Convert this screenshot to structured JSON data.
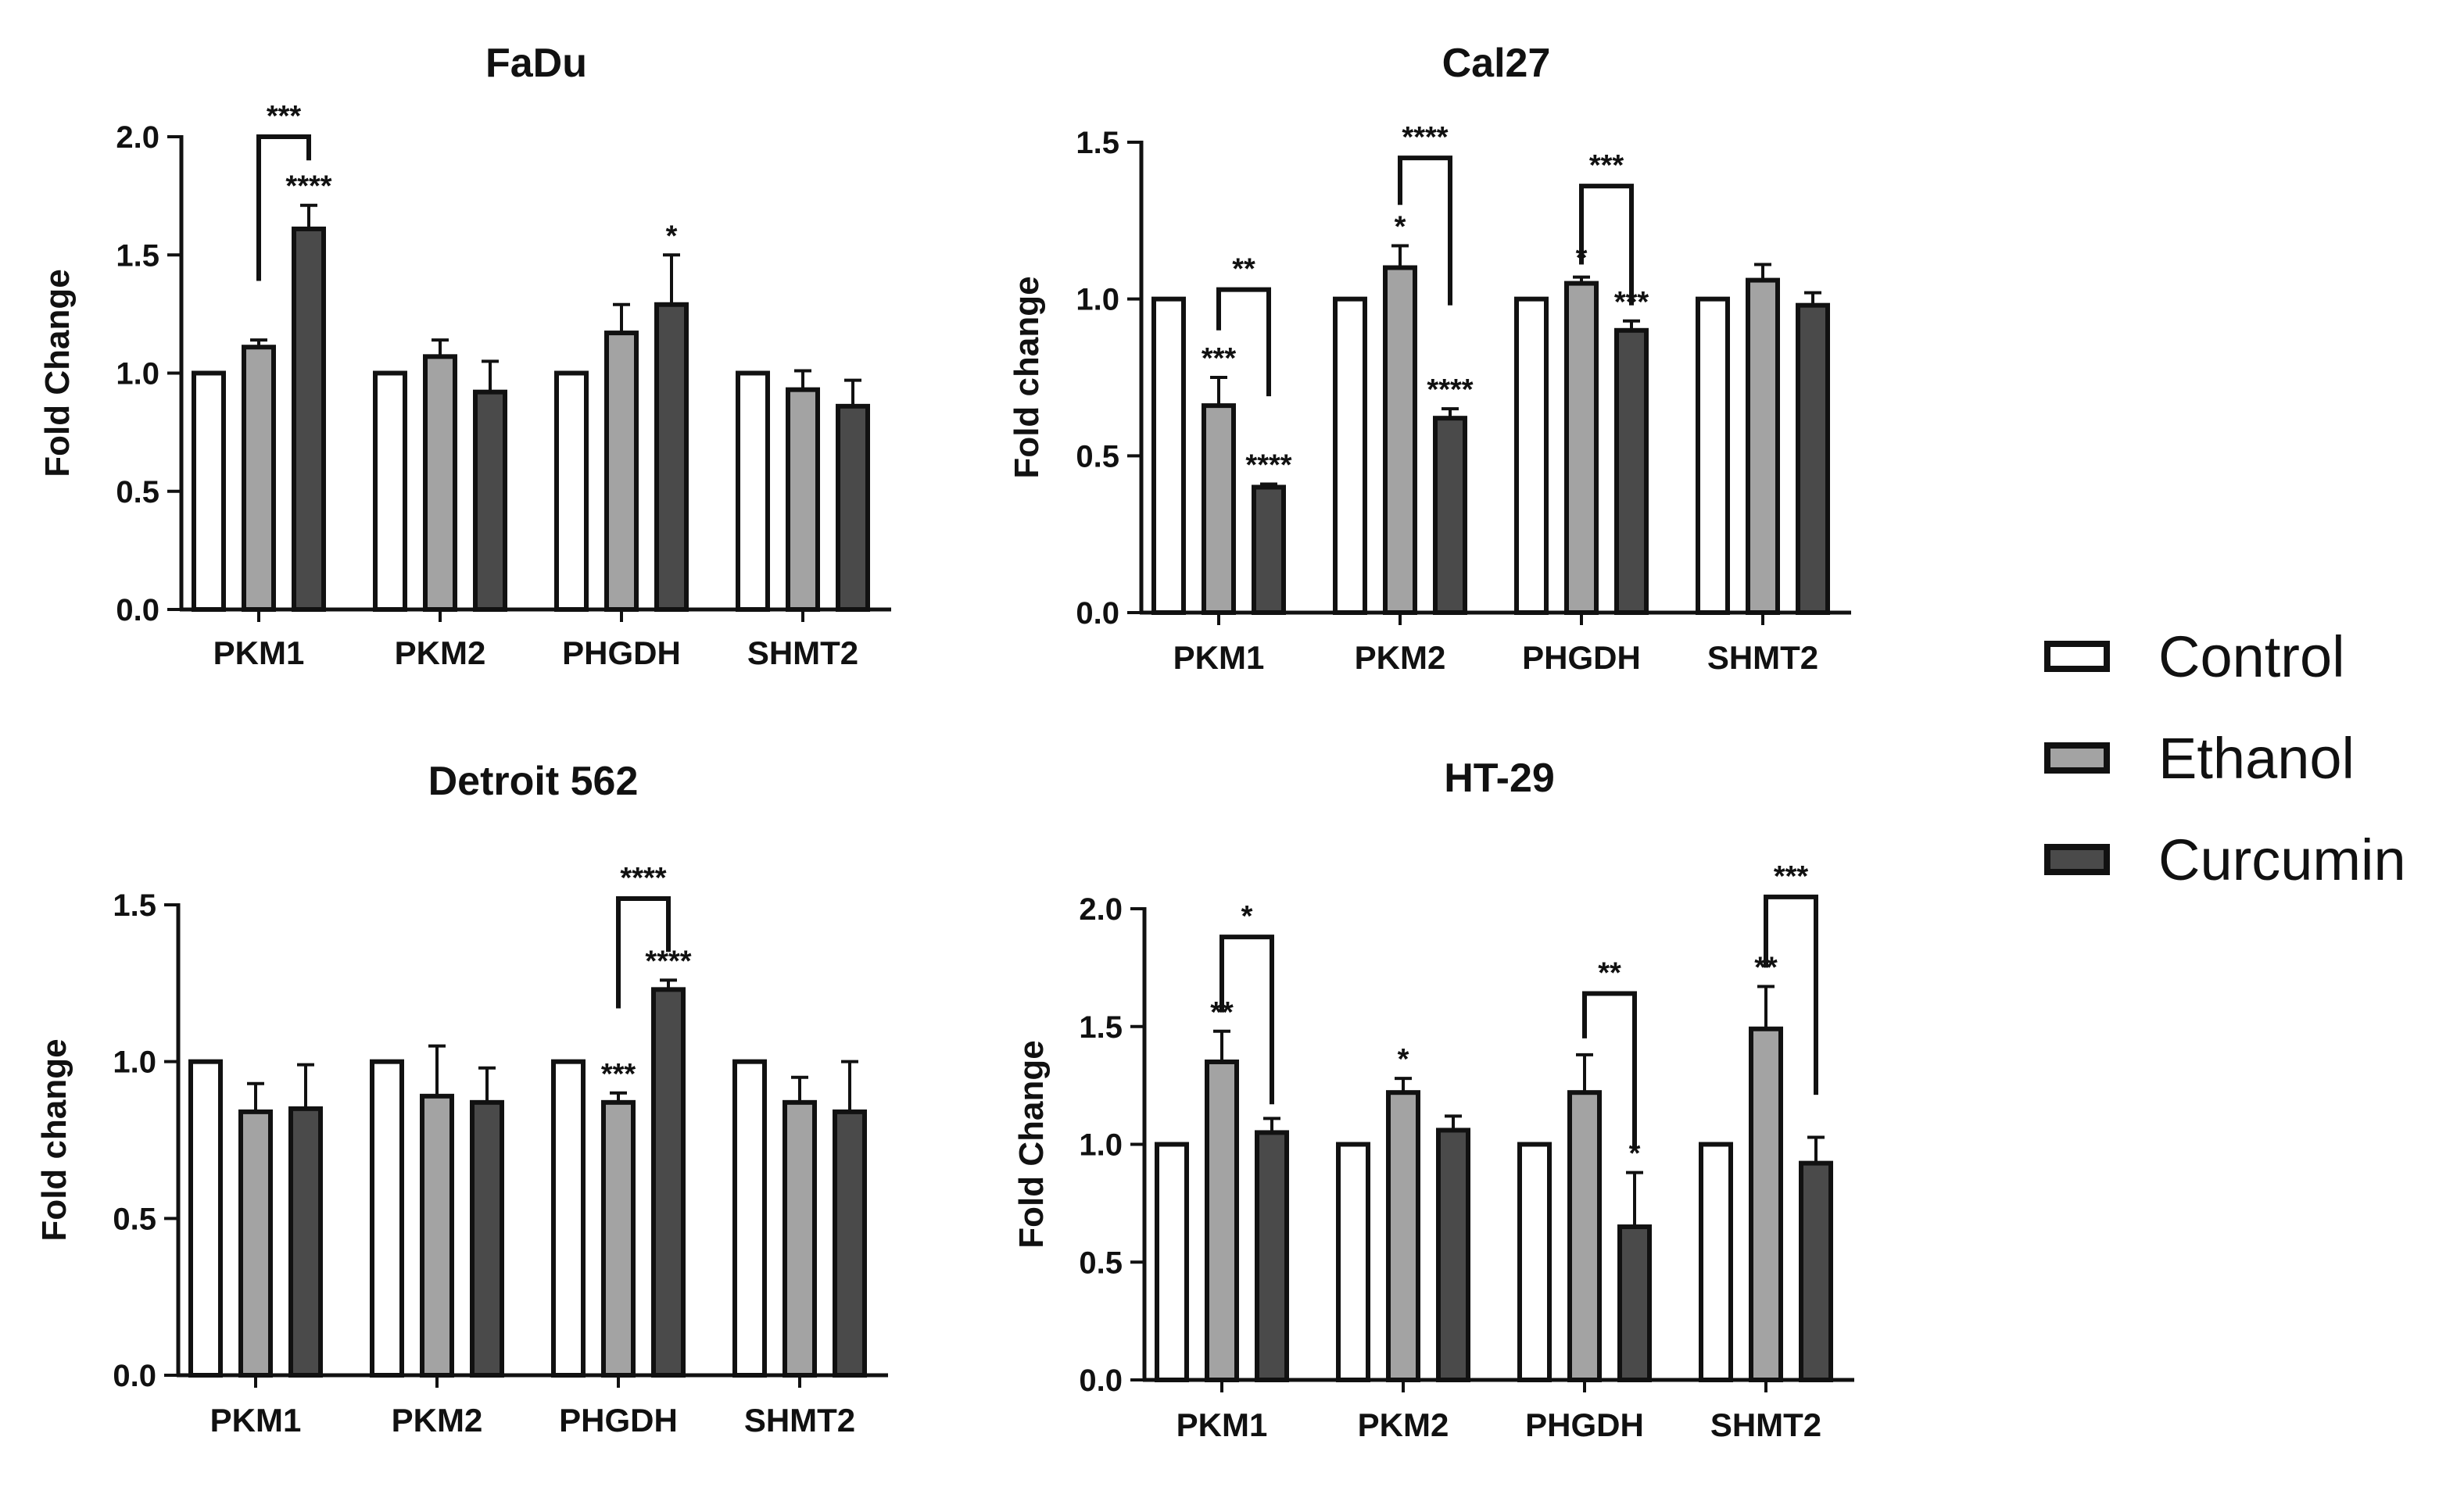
{
  "colors": {
    "control": "#ffffff",
    "ethanol": "#a3a3a3",
    "curcumin": "#4a4a4a",
    "stroke": "#111111"
  },
  "legend": [
    {
      "key": "control",
      "label": "Control"
    },
    {
      "key": "ethanol",
      "label": "Ethanol"
    },
    {
      "key": "curcumin",
      "label": "Curcumin"
    }
  ],
  "chart_data": [
    {
      "type": "bar",
      "title": "FaDu",
      "ylabel": "Fold  Change",
      "ylim": [
        0,
        2.0
      ],
      "yticks": [
        "0.0",
        "0.5",
        "1.0",
        "1.5",
        "2.0"
      ],
      "categories": [
        "PKM1",
        "PKM2",
        "PHGDH",
        "SHMT2"
      ],
      "series": [
        {
          "name": "Control",
          "key": "control",
          "values": [
            1.0,
            1.0,
            1.0,
            1.0
          ],
          "errors": [
            0,
            0,
            0,
            0
          ]
        },
        {
          "name": "Ethanol",
          "key": "ethanol",
          "values": [
            1.11,
            1.07,
            1.17,
            0.93
          ],
          "errors": [
            0.03,
            0.07,
            0.12,
            0.08
          ]
        },
        {
          "name": "Curcumin",
          "key": "curcumin",
          "values": [
            1.61,
            0.92,
            1.29,
            0.86
          ],
          "errors": [
            0.1,
            0.13,
            0.21,
            0.11
          ]
        }
      ],
      "significance": [
        {
          "category": 0,
          "series": 2,
          "label": "****"
        },
        {
          "category": 2,
          "series": 2,
          "label": "*"
        }
      ],
      "brackets": [
        {
          "category": 0,
          "from": 1,
          "to": 2,
          "top": 2.0,
          "left_end": 1.39,
          "right_end": 1.9,
          "label": "***"
        }
      ]
    },
    {
      "type": "bar",
      "title": "Cal27",
      "ylabel": "Fold change",
      "ylim": [
        0,
        1.5
      ],
      "yticks": [
        "0.0",
        "0.5",
        "1.0",
        "1.5"
      ],
      "categories": [
        "PKM1",
        "PKM2",
        "PHGDH",
        "SHMT2"
      ],
      "series": [
        {
          "name": "Control",
          "key": "control",
          "values": [
            1.0,
            1.0,
            1.0,
            1.0
          ],
          "errors": [
            0,
            0,
            0,
            0
          ]
        },
        {
          "name": "Ethanol",
          "key": "ethanol",
          "values": [
            0.66,
            1.1,
            1.05,
            1.06
          ],
          "errors": [
            0.09,
            0.07,
            0.02,
            0.05
          ]
        },
        {
          "name": "Curcumin",
          "key": "curcumin",
          "values": [
            0.4,
            0.62,
            0.9,
            0.98
          ],
          "errors": [
            0.01,
            0.03,
            0.03,
            0.04
          ]
        }
      ],
      "significance": [
        {
          "category": 0,
          "series": 1,
          "label": "***"
        },
        {
          "category": 0,
          "series": 2,
          "label": "****"
        },
        {
          "category": 1,
          "series": 1,
          "label": "*"
        },
        {
          "category": 1,
          "series": 2,
          "label": "****"
        },
        {
          "category": 2,
          "series": 1,
          "label": "*"
        },
        {
          "category": 2,
          "series": 2,
          "label": "***"
        }
      ],
      "brackets": [
        {
          "category": 0,
          "from": 1,
          "to": 2,
          "top": 1.03,
          "left_end": 0.9,
          "right_end": 0.69,
          "label": "**"
        },
        {
          "category": 1,
          "from": 1,
          "to": 2,
          "top": 1.45,
          "left_end": 1.3,
          "right_end": 0.98,
          "label": "****"
        },
        {
          "category": 2,
          "from": 1,
          "to": 2,
          "top": 1.36,
          "left_end": 1.11,
          "right_end": 0.98,
          "label": "***"
        }
      ]
    },
    {
      "type": "bar",
      "title": "Detroit 562",
      "ylabel": "Fold change",
      "ylim": [
        0,
        1.5
      ],
      "yticks": [
        "0.0",
        "0.5",
        "1.0",
        "1.5"
      ],
      "categories": [
        "PKM1",
        "PKM2",
        "PHGDH",
        "SHMT2"
      ],
      "series": [
        {
          "name": "Control",
          "key": "control",
          "values": [
            1.0,
            1.0,
            1.0,
            1.0
          ],
          "errors": [
            0,
            0,
            0,
            0
          ]
        },
        {
          "name": "Ethanol",
          "key": "ethanol",
          "values": [
            0.84,
            0.89,
            0.87,
            0.87
          ],
          "errors": [
            0.09,
            0.16,
            0.03,
            0.08
          ]
        },
        {
          "name": "Curcumin",
          "key": "curcumin",
          "values": [
            0.85,
            0.87,
            1.23,
            0.84
          ],
          "errors": [
            0.14,
            0.11,
            0.03,
            0.16
          ]
        }
      ],
      "significance": [
        {
          "category": 2,
          "series": 1,
          "label": "***"
        },
        {
          "category": 2,
          "series": 2,
          "label": "****"
        }
      ],
      "brackets": [
        {
          "category": 2,
          "from": 1,
          "to": 2,
          "top": 1.52,
          "left_end": 1.17,
          "right_end": 1.35,
          "label": "****"
        }
      ]
    },
    {
      "type": "bar",
      "title": "HT-29",
      "ylabel": "Fold  Change",
      "ylim": [
        0,
        2.0
      ],
      "yticks": [
        "0.0",
        "0.5",
        "1.0",
        "1.5",
        "2.0"
      ],
      "categories": [
        "PKM1",
        "PKM2",
        "PHGDH",
        "SHMT2"
      ],
      "series": [
        {
          "name": "Control",
          "key": "control",
          "values": [
            1.0,
            1.0,
            1.0,
            1.0
          ],
          "errors": [
            0,
            0,
            0,
            0
          ]
        },
        {
          "name": "Ethanol",
          "key": "ethanol",
          "values": [
            1.35,
            1.22,
            1.22,
            1.49
          ],
          "errors": [
            0.13,
            0.06,
            0.16,
            0.18
          ]
        },
        {
          "name": "Curcumin",
          "key": "curcumin",
          "values": [
            1.05,
            1.06,
            0.65,
            0.92
          ],
          "errors": [
            0.06,
            0.06,
            0.23,
            0.11
          ]
        }
      ],
      "significance": [
        {
          "category": 0,
          "series": 1,
          "label": "**"
        },
        {
          "category": 1,
          "series": 1,
          "label": "*"
        },
        {
          "category": 2,
          "series": 1,
          "label": ""
        },
        {
          "category": 2,
          "series": 2,
          "label": "*"
        },
        {
          "category": 3,
          "series": 1,
          "label": "**"
        }
      ],
      "brackets": [
        {
          "category": 0,
          "from": 1,
          "to": 2,
          "top": 1.88,
          "left_end": 1.56,
          "right_end": 1.17,
          "label": "*"
        },
        {
          "category": 2,
          "from": 1,
          "to": 2,
          "top": 1.64,
          "left_end": 1.45,
          "right_end": 0.98,
          "label": "**"
        },
        {
          "category": 3,
          "from": 1,
          "to": 2,
          "top": 2.05,
          "left_end": 1.75,
          "right_end": 1.21,
          "label": "***"
        }
      ]
    }
  ]
}
